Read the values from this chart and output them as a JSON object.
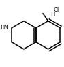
{
  "bg_color": "#ffffff",
  "bond_color": "#000000",
  "text_color": "#000000",
  "lw": 1.1,
  "fs": 6.0,
  "HCl": "Cl",
  "H": "H",
  "NH": "HN"
}
